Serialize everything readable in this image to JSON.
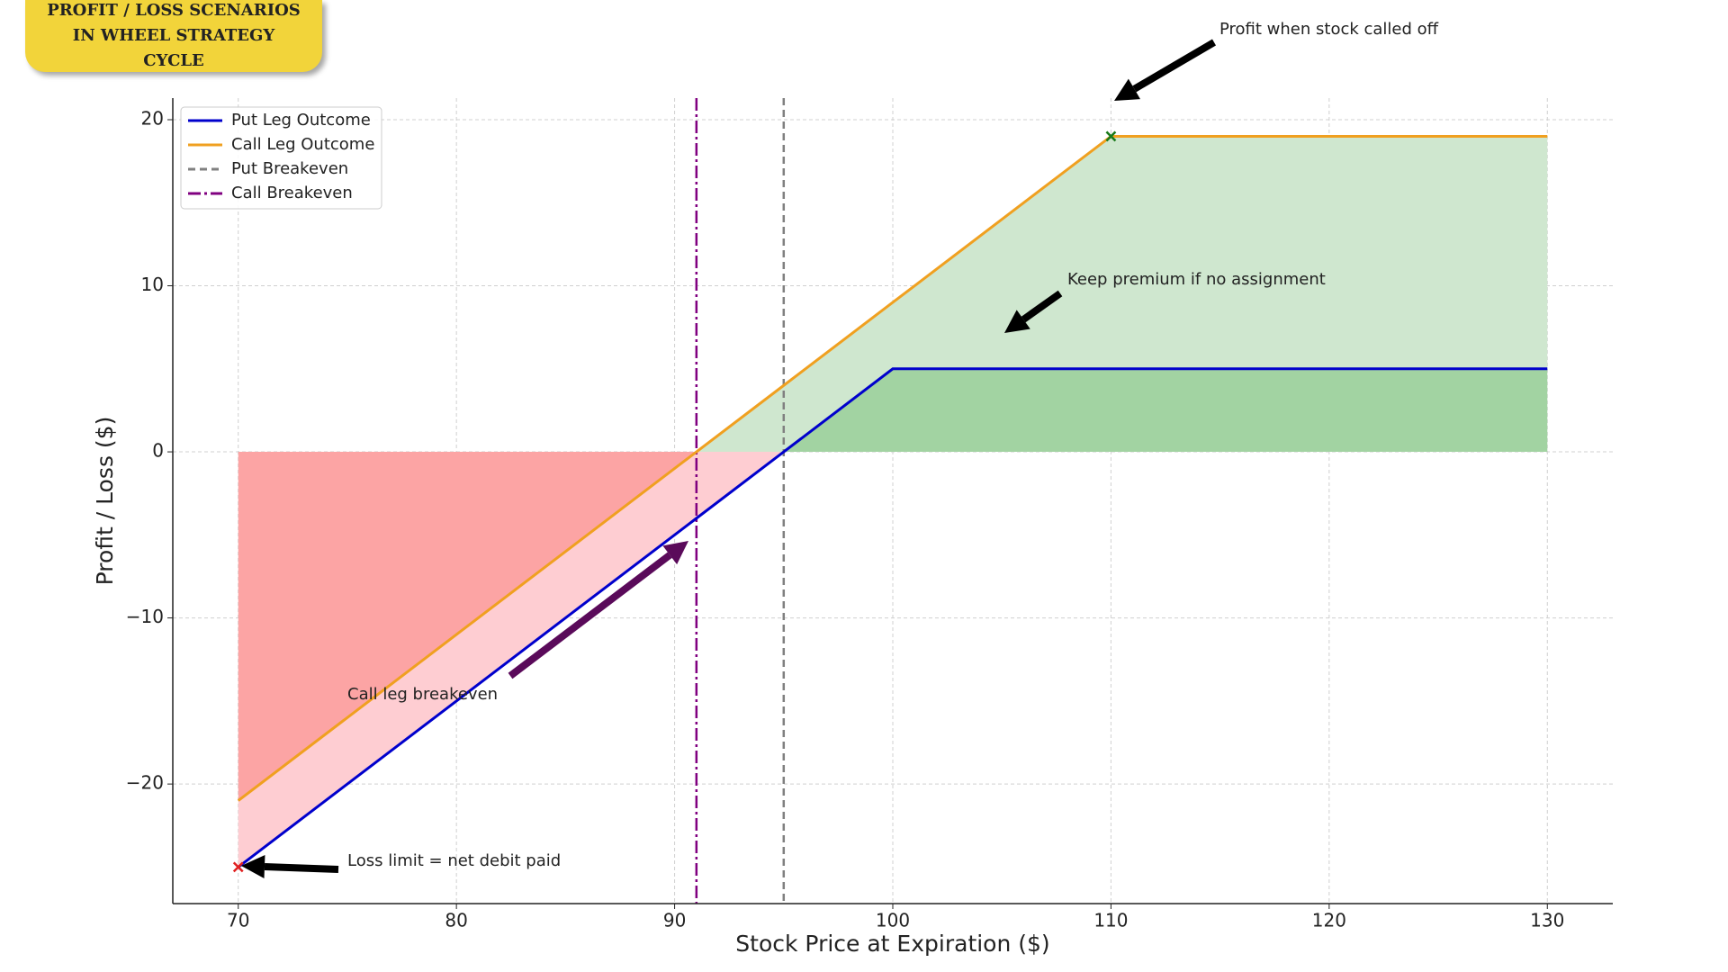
{
  "badge": {
    "title": "PROFIT / LOSS SCENARIOS IN WHEEL STRATEGY CYCLE"
  },
  "chart_data": {
    "type": "line",
    "xlabel": "Stock Price at Expiration ($)",
    "ylabel": "Profit / Loss ($)",
    "x": [
      70,
      91,
      95,
      100,
      110,
      130
    ],
    "series": [
      {
        "name": "Put Leg Outcome",
        "color": "#0000cc",
        "values": [
          -25,
          -4,
          0,
          5,
          5,
          5
        ]
      },
      {
        "name": "Call Leg Outcome",
        "color": "#f0a020",
        "values": [
          -21,
          0,
          4,
          9,
          19,
          19
        ]
      }
    ],
    "vlines": [
      {
        "name": "Put Breakeven",
        "x": 95,
        "color": "#808080",
        "style": "dashed"
      },
      {
        "name": "Call Breakeven",
        "x": 91,
        "color": "#800080",
        "style": "dashdot"
      }
    ],
    "markers": [
      {
        "x": 70,
        "y": -25,
        "color": "#e02020"
      },
      {
        "x": 110,
        "y": 19,
        "color": "#1a7a1a"
      }
    ],
    "annotations": [
      "Profit when stock called off",
      "Keep premium if no assignment",
      "Call leg breakeven",
      "Loss limit = net debit paid"
    ],
    "xlim": [
      67,
      133
    ],
    "ylim": [
      -27.2,
      21.3
    ],
    "xticks": [
      70,
      80,
      90,
      100,
      110,
      120,
      130
    ],
    "yticks": [
      {
        "value": -20,
        "label": "−20"
      },
      {
        "value": -10,
        "label": "−10"
      },
      0,
      10,
      20
    ],
    "grid": true,
    "legend": "upper left"
  }
}
